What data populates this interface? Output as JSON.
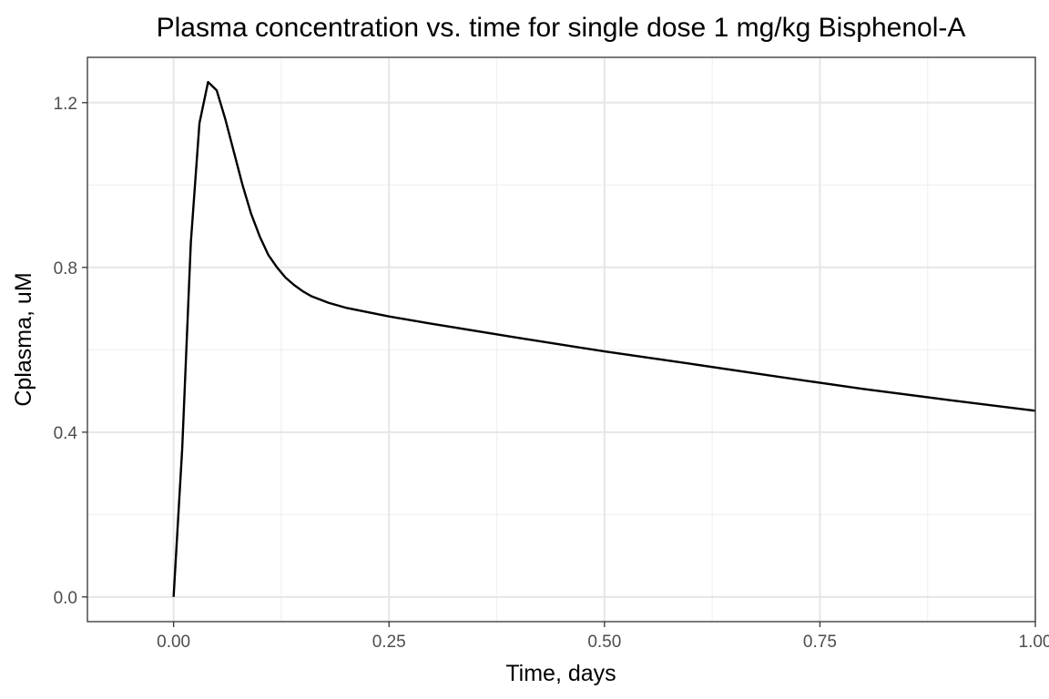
{
  "chart_data": {
    "type": "line",
    "title": "Plasma concentration vs. time for single dose 1 mg/kg Bisphenol-A",
    "xlabel": "Time, days",
    "ylabel": "Cplasma, uM",
    "xlim": [
      -0.1,
      1.0
    ],
    "ylim": [
      -0.06,
      1.31
    ],
    "x_ticks": [
      0.0,
      0.25,
      0.5,
      0.75,
      1.0
    ],
    "x_tick_labels": [
      "0.00",
      "0.25",
      "0.50",
      "0.75",
      "1.00"
    ],
    "y_ticks": [
      0.0,
      0.4,
      0.8,
      1.2
    ],
    "y_tick_labels": [
      "0.0",
      "0.4",
      "0.8",
      "1.2"
    ],
    "grid": true,
    "legend": "none",
    "line_color": "#000000",
    "x": [
      0.0,
      0.01,
      0.02,
      0.03,
      0.04,
      0.05,
      0.06,
      0.07,
      0.08,
      0.09,
      0.1,
      0.11,
      0.12,
      0.13,
      0.14,
      0.15,
      0.16,
      0.18,
      0.2,
      0.25,
      0.3,
      0.4,
      0.5,
      0.6,
      0.7,
      0.8,
      0.9,
      1.0
    ],
    "y": [
      0.0,
      0.36,
      0.86,
      1.15,
      1.25,
      1.23,
      1.16,
      1.08,
      1.0,
      0.93,
      0.875,
      0.83,
      0.8,
      0.775,
      0.757,
      0.742,
      0.73,
      0.714,
      0.702,
      0.681,
      0.663,
      0.629,
      0.596,
      0.566,
      0.535,
      0.505,
      0.478,
      0.452
    ]
  }
}
